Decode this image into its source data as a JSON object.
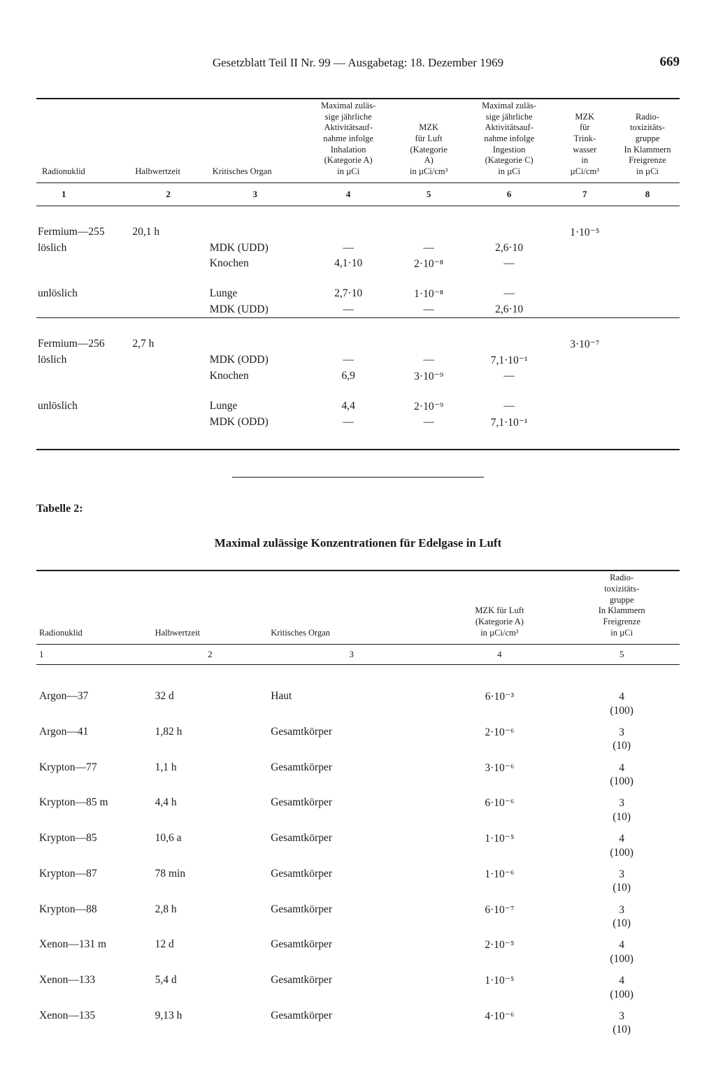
{
  "header": {
    "title": "Gesetzblatt Teil II Nr. 99 — Ausgabetag: 18. Dezember 1969",
    "page_number": "669"
  },
  "table1": {
    "headers": {
      "c1": "Radionuklid",
      "c2": "Halbwertzeit",
      "c3": "Kritisches Organ",
      "c4": "Maximal zuläs-\nsige jährliche\nAktivitätsauf-\nnahme infolge\nInhalation\n(Kategorie A)\nin  µCi",
      "c5": "MZK\nfür Luft\n(Kategorie\nA)\nin µCi/cm³",
      "c6": "Maximal zuläs-\nsige jährliche\nAktivitätsauf-\nnahme infolge\nIngestion\n(Kategorie C)\nin µCi",
      "c7": "MZK\nfür\nTrink-\nwasser\nin\nµCi/cm³",
      "c8": "Radio-\ntoxizitäts-\ngruppe\nIn Klammern\nFreigrenze\nin µCi"
    },
    "colnums": [
      "1",
      "2",
      "3",
      "4",
      "5",
      "6",
      "7",
      "8"
    ],
    "rows": [
      {
        "c1": "Fermium—255",
        "c2": "20,1 h",
        "c3": "",
        "c4": "",
        "c5": "",
        "c6": "",
        "c7": "1·10⁻⁵",
        "c8": ""
      },
      {
        "c1": "löslich",
        "c2": "",
        "c3": "MDK (UDD)",
        "c4": "—",
        "c5": "—",
        "c6": "2,6·10",
        "c7": "",
        "c8": ""
      },
      {
        "c1": "",
        "c2": "",
        "c3": "Knochen",
        "c4": "4,1·10",
        "c5": "2·10⁻⁸",
        "c6": "—",
        "c7": "",
        "c8": ""
      },
      {
        "gap": true
      },
      {
        "c1": "unlöslich",
        "c2": "",
        "c3": "Lunge",
        "c4": "2,7·10",
        "c5": "1·10⁻⁸",
        "c6": "—",
        "c7": "",
        "c8": ""
      },
      {
        "c1": "",
        "c2": "",
        "c3": "MDK (UDD)",
        "c4": "—",
        "c5": "—",
        "c6": "2,6·10",
        "c7": "",
        "c8": ""
      },
      {
        "rule": "thin"
      },
      {
        "biggap": true
      },
      {
        "c1": "Fermium—256",
        "c2": "2,7 h",
        "c3": "",
        "c4": "",
        "c5": "",
        "c6": "",
        "c7": "3·10⁻⁷",
        "c8": ""
      },
      {
        "c1": "löslich",
        "c2": "",
        "c3": "MDK (ODD)",
        "c4": "—",
        "c5": "—",
        "c6": "7,1·10⁻¹",
        "c7": "",
        "c8": ""
      },
      {
        "c1": "",
        "c2": "",
        "c3": "Knochen",
        "c4": "6,9",
        "c5": "3·10⁻⁹",
        "c6": "—",
        "c7": "",
        "c8": ""
      },
      {
        "gap": true
      },
      {
        "c1": "unlöslich",
        "c2": "",
        "c3": "Lunge",
        "c4": "4,4",
        "c5": "2·10⁻⁹",
        "c6": "—",
        "c7": "",
        "c8": ""
      },
      {
        "c1": "",
        "c2": "",
        "c3": "MDK (ODD)",
        "c4": "—",
        "c5": "—",
        "c6": "7,1·10⁻¹",
        "c7": "",
        "c8": ""
      }
    ]
  },
  "table2": {
    "label": "Tabelle 2:",
    "title": "Maximal zulässige Konzentrationen für Edelgase in Luft",
    "headers": {
      "c1": "Radionuklid",
      "c2": "Halbwertzeit",
      "c3": "Kritisches Organ",
      "c4": "MZK für Luft\n(Kategorie A)\nin µCi/cm³",
      "c5": "Radio-\ntoxizitäts-\ngruppe\nIn Klammern\nFreigrenze\nin µCi"
    },
    "colnums": [
      "1",
      "2",
      "3",
      "4",
      "5"
    ],
    "rows": [
      {
        "c1": "Argon—37",
        "c2": "32 d",
        "c3": "Haut",
        "c4": "6·10⁻³",
        "c5": "4",
        "c5b": "(100)"
      },
      {
        "c1": "Argon—41",
        "c2": "1,82 h",
        "c3": "Gesamtkörper",
        "c4": "2·10⁻⁶",
        "c5": "3",
        "c5b": "(10)"
      },
      {
        "c1": "Krypton—77",
        "c2": "1,1 h",
        "c3": "Gesamtkörper",
        "c4": "3·10⁻⁶",
        "c5": "4",
        "c5b": "(100)"
      },
      {
        "c1": "Krypton—85 m",
        "c2": "4,4 h",
        "c3": "Gesamtkörper",
        "c4": "6·10⁻⁶",
        "c5": "3",
        "c5b": "(10)"
      },
      {
        "c1": "Krypton—85",
        "c2": "10,6 a",
        "c3": "Gesamtkörper",
        "c4": "1·10⁻⁵",
        "c5": "4",
        "c5b": "(100)"
      },
      {
        "c1": "Krypton—87",
        "c2": "78 min",
        "c3": "Gesamtkörper",
        "c4": "1·10⁻⁶",
        "c5": "3",
        "c5b": "(10)"
      },
      {
        "c1": "Krypton—88",
        "c2": "2,8 h",
        "c3": "Gesamtkörper",
        "c4": "6·10⁻⁷",
        "c5": "3",
        "c5b": "(10)"
      },
      {
        "c1": "Xenon—131 m",
        "c2": "12 d",
        "c3": "Gesamtkörper",
        "c4": "2·10⁻⁵",
        "c5": "4",
        "c5b": "(100)"
      },
      {
        "c1": "Xenon—133",
        "c2": "5,4 d",
        "c3": "Gesamtkörper",
        "c4": "1·10⁻⁵",
        "c5": "4",
        "c5b": "(100)"
      },
      {
        "c1": "Xenon—135",
        "c2": "9,13 h",
        "c3": "Gesamtkörper",
        "c4": "4·10⁻⁶",
        "c5": "3",
        "c5b": "(10)"
      }
    ]
  }
}
